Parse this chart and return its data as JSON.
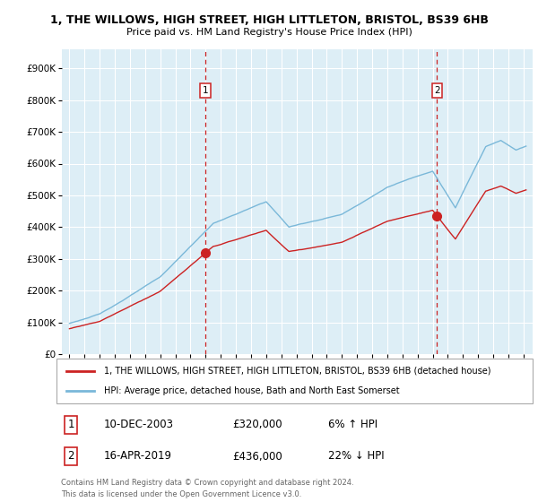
{
  "title1": "1, THE WILLOWS, HIGH STREET, HIGH LITTLETON, BRISTOL, BS39 6HB",
  "title2": "Price paid vs. HM Land Registry's House Price Index (HPI)",
  "ytick_values": [
    0,
    100000,
    200000,
    300000,
    400000,
    500000,
    600000,
    700000,
    800000,
    900000
  ],
  "ylim": [
    0,
    960000
  ],
  "sale1_t": 2004.0,
  "sale1_price": 320000,
  "sale1_label": "1",
  "sale1_date": "10-DEC-2003",
  "sale1_price_str": "£320,000",
  "sale1_hpi": "6% ↑ HPI",
  "sale2_t": 2019.29,
  "sale2_price": 436000,
  "sale2_label": "2",
  "sale2_date": "16-APR-2019",
  "sale2_price_str": "£436,000",
  "sale2_hpi": "22% ↓ HPI",
  "hpi_color": "#7ab8d9",
  "prop_color": "#cc2222",
  "vline_color": "#cc2222",
  "bg_color": "#ddeef6",
  "legend_label1": "1, THE WILLOWS, HIGH STREET, HIGH LITTLETON, BRISTOL, BS39 6HB (detached house)",
  "legend_label2": "HPI: Average price, detached house, Bath and North East Somerset",
  "footer": "Contains HM Land Registry data © Crown copyright and database right 2024.\nThis data is licensed under the Open Government Licence v3.0.",
  "xstart": 1995,
  "xend": 2025
}
